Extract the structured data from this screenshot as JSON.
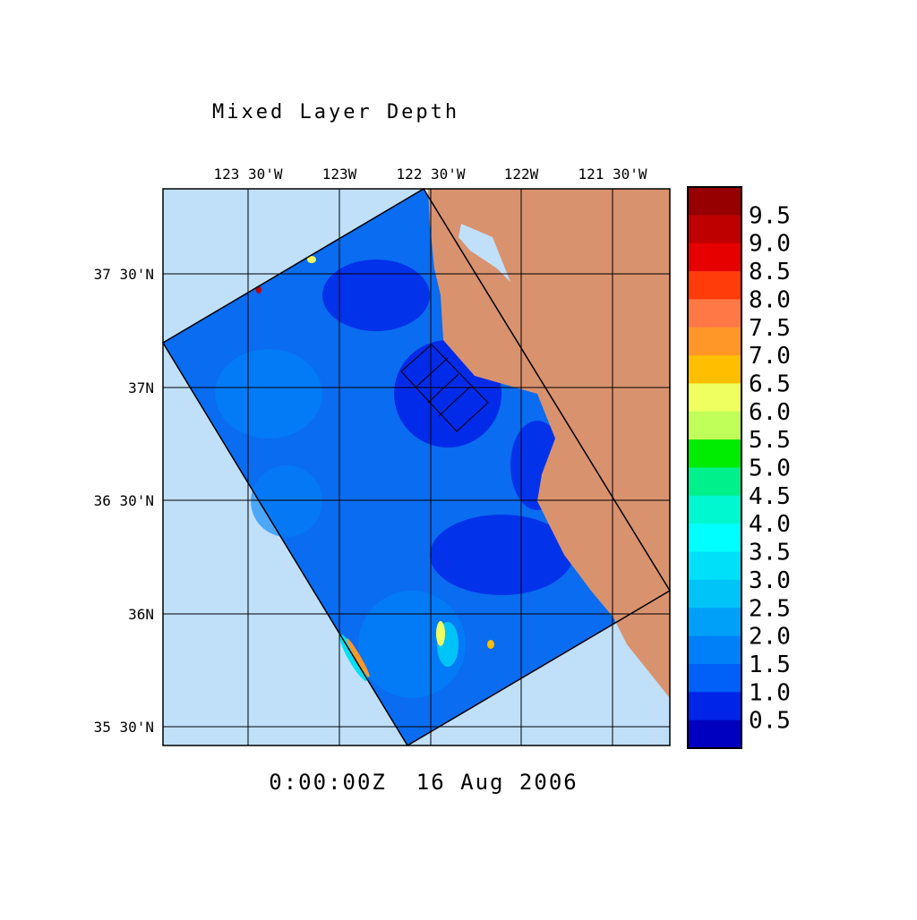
{
  "title": "Mixed Layer Depth",
  "timestamp": "0:00:00Z  16 Aug 2006",
  "lon_labels": [
    "123 30'W",
    "123W",
    "122 30'W",
    "122W",
    "121 30'W"
  ],
  "lat_labels": [
    "37 30'N",
    "37N",
    "36 30'N",
    "36N",
    "35 30'N"
  ],
  "colors": {
    "land": "#d9926e",
    "outside_domain": "#c0e0fa",
    "ocean_base": "#0a6cf0"
  },
  "colorbar": {
    "labels": [
      "9.5",
      "9.0",
      "8.5",
      "8.0",
      "7.5",
      "7.0",
      "6.5",
      "6.0",
      "5.5",
      "5.0",
      "4.5",
      "4.0",
      "3.5",
      "3.0",
      "2.5",
      "2.0",
      "1.5",
      "1.0",
      "0.5"
    ],
    "colors_top_to_bottom": [
      "#960000",
      "#be0000",
      "#e60000",
      "#ff3c0a",
      "#ff7846",
      "#ff9628",
      "#ffbe00",
      "#f0ff60",
      "#c0ff5a",
      "#00ec00",
      "#00f08c",
      "#00f8d0",
      "#00ffff",
      "#00e0f8",
      "#00c4f8",
      "#00a0f8",
      "#0080f8",
      "#0060f8",
      "#0024e8",
      "#0000c0"
    ]
  }
}
